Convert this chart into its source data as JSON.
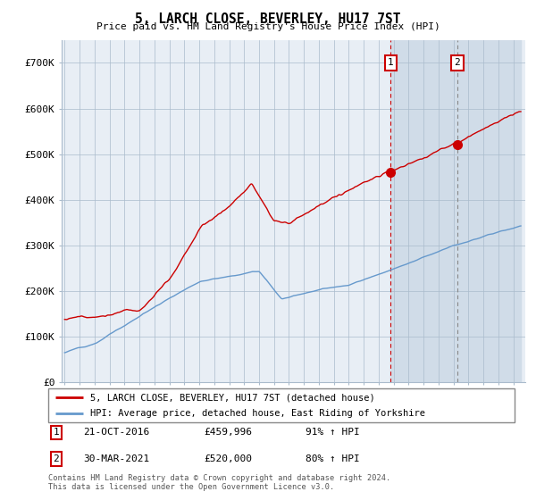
{
  "title": "5, LARCH CLOSE, BEVERLEY, HU17 7ST",
  "subtitle": "Price paid vs. HM Land Registry's House Price Index (HPI)",
  "red_label": "5, LARCH CLOSE, BEVERLEY, HU17 7ST (detached house)",
  "blue_label": "HPI: Average price, detached house, East Riding of Yorkshire",
  "sale1_label": "1",
  "sale1_date": "21-OCT-2016",
  "sale1_price": "£459,996",
  "sale1_hpi": "91% ↑ HPI",
  "sale2_label": "2",
  "sale2_date": "30-MAR-2021",
  "sale2_price": "£520,000",
  "sale2_hpi": "80% ↑ HPI",
  "footer": "Contains HM Land Registry data © Crown copyright and database right 2024.\nThis data is licensed under the Open Government Licence v3.0.",
  "ylim": [
    0,
    750000
  ],
  "yticks": [
    0,
    100000,
    200000,
    300000,
    400000,
    500000,
    600000,
    700000
  ],
  "ytick_labels": [
    "£0",
    "£100K",
    "£200K",
    "£300K",
    "£400K",
    "£500K",
    "£600K",
    "£700K"
  ],
  "red_color": "#cc0000",
  "blue_color": "#6699cc",
  "sale1_x": 2016.8,
  "sale2_x": 2021.25,
  "background_color": "#e8eef5",
  "grid_color": "#aabbcc",
  "shaded_color": "#d0dce8",
  "shaded_start": 2016.8,
  "shaded_end": 2025.5,
  "xmin": 1994.8,
  "xmax": 2025.8
}
